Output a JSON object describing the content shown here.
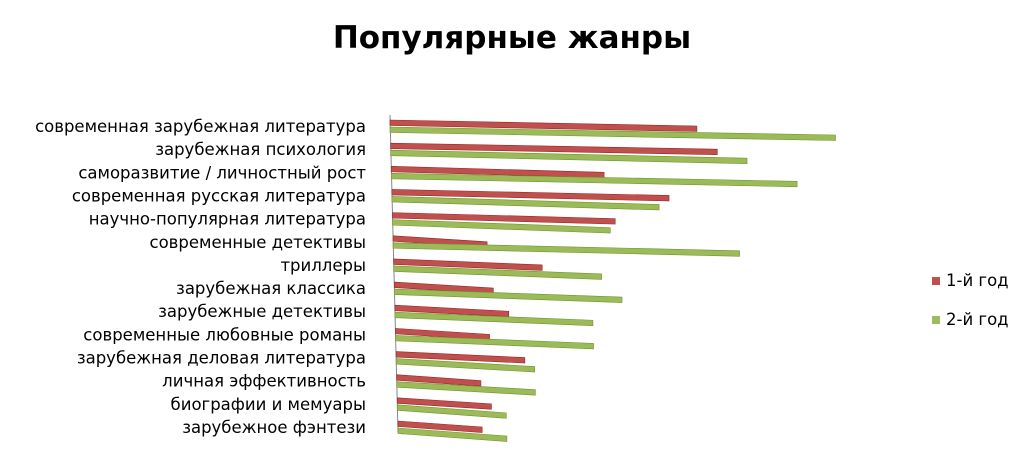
{
  "chart_data": {
    "type": "bar",
    "orientation": "horizontal",
    "title": "Популярные жанры",
    "categories": [
      "современная зарубежная литература",
      "зарубежная психология",
      "саморазвитие / личностный рост",
      "современная русская литература",
      "научно-популярная литература",
      "современные детективы",
      "триллеры",
      "зарубежная классика",
      "зарубежные детективы",
      "современные любовные романы",
      "зарубежная деловая литература",
      "личная эффективность",
      "биографии и мемуары",
      "зарубежное фэнтези"
    ],
    "series": [
      {
        "name": "1-й год",
        "color": "#c0504d",
        "values": [
          31,
          33,
          21.5,
          28,
          22.5,
          9.5,
          15,
          10,
          11.5,
          9.5,
          13,
          8.5,
          9.5,
          8.5
        ]
      },
      {
        "name": "2-й год",
        "color": "#9bbb59",
        "values": [
          45,
          36,
          41,
          27,
          22,
          35,
          21,
          23,
          20,
          20,
          14,
          14,
          11,
          11
        ]
      }
    ],
    "grid": false,
    "legend_position": "right"
  }
}
